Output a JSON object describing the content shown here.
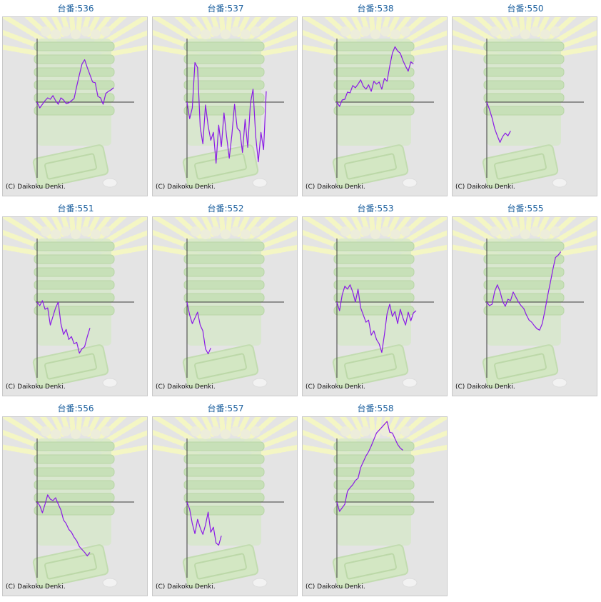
{
  "page": {
    "line_color": "#8a1ae6",
    "axis_color": "#3a3a3a",
    "panel_bg": "#e4e4e4",
    "title_color": "#1a5f9e"
  },
  "machines": [
    {
      "title": "台番:536",
      "copyright": "(C) Daikoku Denki."
    },
    {
      "title": "台番:537",
      "copyright": "(C) Daikoku Denki."
    },
    {
      "title": "台番:538",
      "copyright": "(C) Daikoku Denki."
    },
    {
      "title": "台番:550",
      "copyright": "(C) Daikoku Denki."
    },
    {
      "title": "台番:551",
      "copyright": "(C) Daikoku Denki."
    },
    {
      "title": "台番:552",
      "copyright": "(C) Daikoku Denki."
    },
    {
      "title": "台番:553",
      "copyright": "(C) Daikoku Denki."
    },
    {
      "title": "台番:555",
      "copyright": "(C) Daikoku Denki."
    },
    {
      "title": "台番:556",
      "copyright": "(C) Daikoku Denki."
    },
    {
      "title": "台番:557",
      "copyright": "(C) Daikoku Denki."
    },
    {
      "title": "台番:558",
      "copyright": "(C) Daikoku Denki."
    }
  ],
  "chart_data": [
    {
      "type": "line",
      "title": "台番:536",
      "xlim": [
        0,
        100
      ],
      "ylim": [
        -100,
        100
      ],
      "y": [
        0,
        -8,
        -3,
        2,
        6,
        4,
        9,
        2,
        -3,
        6,
        3,
        -2,
        -1,
        2,
        5,
        22,
        38,
        53,
        59,
        48,
        38,
        28,
        27,
        8,
        6,
        -3,
        12,
        15,
        17,
        20
      ]
    },
    {
      "type": "line",
      "title": "台番:537",
      "xlim": [
        0,
        100
      ],
      "ylim": [
        -100,
        100
      ],
      "y": [
        0,
        -23,
        -8,
        55,
        48,
        -35,
        -58,
        -4,
        -33,
        -53,
        -42,
        -85,
        -32,
        -62,
        -15,
        -48,
        -78,
        -45,
        -3,
        -36,
        -40,
        -70,
        -24,
        -63,
        -2,
        18,
        -47,
        -83,
        -42,
        -66,
        15
      ]
    },
    {
      "type": "line",
      "title": "台番:538",
      "xlim": [
        0,
        100
      ],
      "ylim": [
        -100,
        100
      ],
      "y": [
        0,
        -6,
        3,
        4,
        14,
        13,
        23,
        20,
        25,
        31,
        22,
        18,
        24,
        15,
        29,
        25,
        28,
        18,
        33,
        29,
        50,
        68,
        77,
        71,
        68,
        58,
        50,
        43,
        56,
        53
      ]
    },
    {
      "type": "line",
      "title": "台番:550",
      "xlim": [
        0,
        100
      ],
      "ylim": [
        -100,
        100
      ],
      "y": [
        0,
        -10,
        -22,
        -37,
        -47,
        -56,
        -48,
        -43,
        -47,
        -40
      ]
    },
    {
      "type": "line",
      "title": "台番:551",
      "xlim": [
        0,
        100
      ],
      "ylim": [
        -100,
        100
      ],
      "y": [
        0,
        -5,
        2,
        -10,
        -8,
        -32,
        -20,
        -8,
        0,
        -30,
        -45,
        -38,
        -52,
        -48,
        -58,
        -56,
        -71,
        -65,
        -62,
        -48,
        -36
      ]
    },
    {
      "type": "line",
      "title": "台番:552",
      "xlim": [
        0,
        100
      ],
      "ylim": [
        -100,
        100
      ],
      "y": [
        0,
        -18,
        -30,
        -22,
        -14,
        -32,
        -40,
        -65,
        -72,
        -64
      ]
    },
    {
      "type": "line",
      "title": "台番:553",
      "xlim": [
        0,
        100
      ],
      "ylim": [
        -100,
        100
      ],
      "y": [
        0,
        -12,
        10,
        22,
        18,
        24,
        14,
        0,
        18,
        -8,
        -18,
        -28,
        -25,
        -46,
        -40,
        -52,
        -58,
        -70,
        -45,
        -16,
        -3,
        -20,
        -13,
        -30,
        -10,
        -22,
        -32,
        -14,
        -26,
        -15,
        -12
      ]
    },
    {
      "type": "line",
      "title": "台番:555",
      "xlim": [
        0,
        100
      ],
      "ylim": [
        -100,
        100
      ],
      "y": [
        0,
        -5,
        -3,
        15,
        24,
        15,
        1,
        -6,
        4,
        2,
        14,
        7,
        0,
        -5,
        -9,
        -18,
        -25,
        -28,
        -33,
        -37,
        -39,
        -30,
        -12,
        8,
        26,
        45,
        62,
        65,
        70
      ]
    },
    {
      "type": "line",
      "title": "台番:556",
      "xlim": [
        0,
        100
      ],
      "ylim": [
        -100,
        100
      ],
      "y": [
        0,
        -5,
        -15,
        -3,
        10,
        4,
        2,
        6,
        -3,
        -11,
        -25,
        -30,
        -38,
        -42,
        -49,
        -54,
        -62,
        -66,
        -70,
        -75,
        -70
      ]
    },
    {
      "type": "line",
      "title": "台番:557",
      "xlim": [
        0,
        100
      ],
      "ylim": [
        -100,
        100
      ],
      "y": [
        0,
        -10,
        -30,
        -44,
        -24,
        -36,
        -45,
        -32,
        -14,
        -42,
        -35,
        -57,
        -60,
        -47
      ]
    },
    {
      "type": "line",
      "title": "台番:558",
      "xlim": [
        0,
        100
      ],
      "ylim": [
        -100,
        100
      ],
      "y": [
        0,
        -13,
        -8,
        -3,
        15,
        20,
        24,
        30,
        33,
        48,
        56,
        64,
        70,
        78,
        87,
        96,
        100,
        104,
        108,
        112,
        97,
        96,
        88,
        80,
        75,
        72
      ]
    }
  ]
}
